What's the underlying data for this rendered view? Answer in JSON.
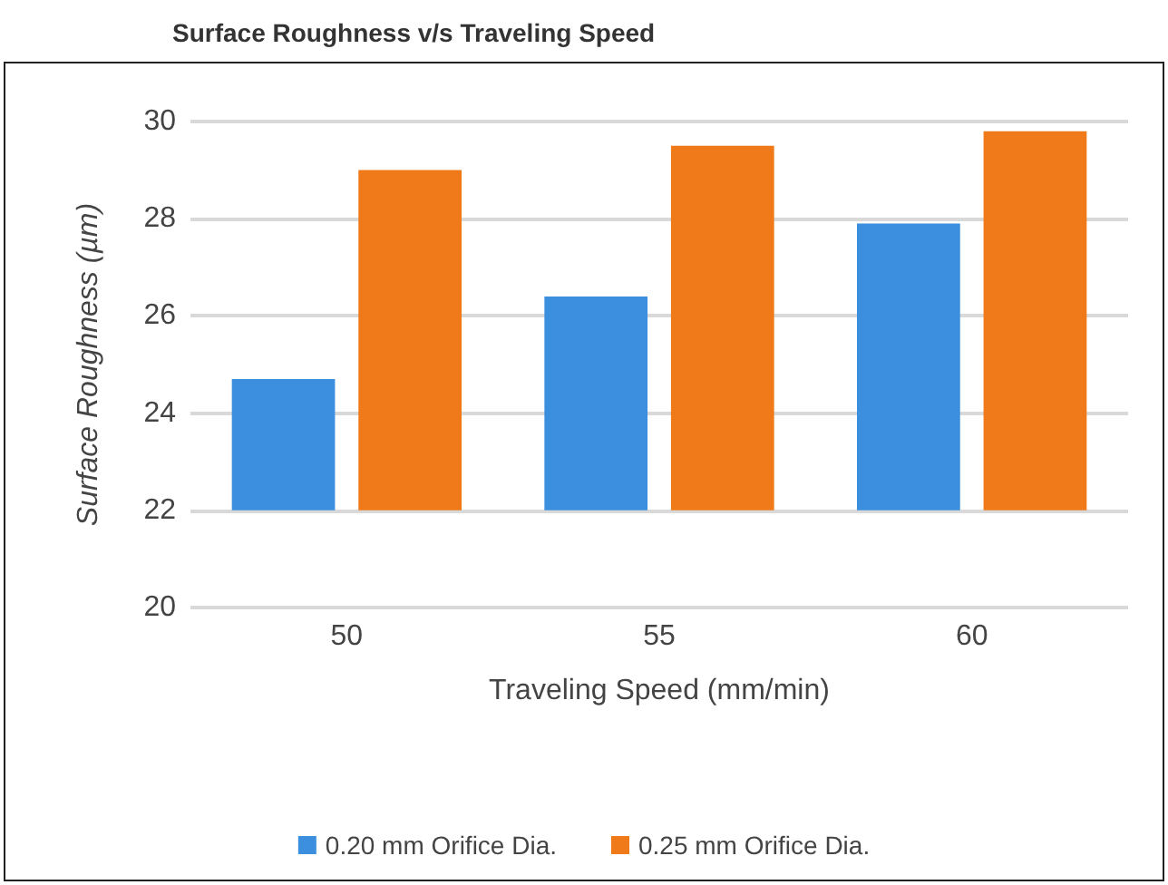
{
  "chart_data": {
    "type": "bar",
    "title": "Surface Roughness v/s Traveling Speed",
    "xlabel": "Traveling Speed (mm/min)",
    "ylabel": "Surface Roughness (µm)",
    "categories": [
      "50",
      "55",
      "60"
    ],
    "series": [
      {
        "name": "0.20 mm Orifice Dia.",
        "color": "#3b8fde",
        "base": [
          22,
          22,
          22
        ],
        "values": [
          2.7,
          4.4,
          5.9
        ]
      },
      {
        "name": "0.25 mm Orifice Dia.",
        "color": "#f07a1a",
        "base": [
          22,
          22,
          22
        ],
        "values": [
          7.0,
          7.5,
          7.8
        ]
      }
    ],
    "ylim": [
      20,
      30
    ],
    "yticks": [
      20,
      22,
      24,
      26,
      28,
      30
    ],
    "grid": "y",
    "legend": "bottom"
  }
}
